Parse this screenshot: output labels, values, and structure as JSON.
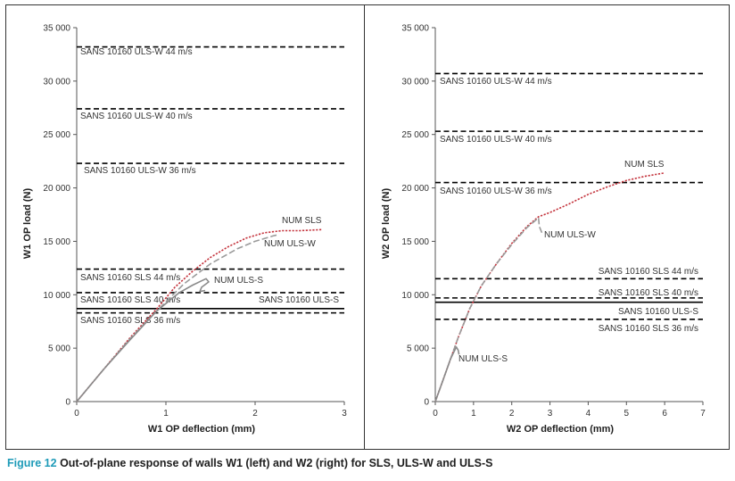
{
  "caption": {
    "label": "Figure 12",
    "text": "Out-of-plane response of walls W1 (left) and W2 (right) for SLS, ULS-W and ULS-S"
  },
  "colors": {
    "num_sls": "#c4343d",
    "num_uls_w": "#9a9a9a",
    "num_uls_s": "#8a8a8a",
    "limit": "#000000",
    "accent": "#1f9bb8"
  },
  "chart_data": [
    {
      "type": "line",
      "xlabel": "W1 OP deflection (mm)",
      "ylabel": "W1 OP load (N)",
      "xlim": [
        0,
        3
      ],
      "ylim": [
        0,
        35000
      ],
      "xticks": [
        "0",
        "1",
        "2",
        "3"
      ],
      "yticks": [
        "0",
        "5 000",
        "10 000",
        "15 000",
        "20 000",
        "25 000",
        "30 000",
        "35 000"
      ],
      "grid": false,
      "series": [
        {
          "name": "NUM SLS",
          "style": "dotted",
          "x": [
            0,
            0.3,
            0.6,
            0.9,
            1.1,
            1.3,
            1.5,
            1.7,
            1.9,
            2.1,
            2.3,
            2.5,
            2.75
          ],
          "y": [
            0,
            3000,
            6000,
            8700,
            10700,
            12200,
            13500,
            14500,
            15300,
            15800,
            16000,
            16000,
            16100
          ]
        },
        {
          "name": "NUM ULS-W",
          "style": "dashed",
          "x": [
            0,
            0.3,
            0.6,
            0.9,
            1.2,
            1.5,
            1.8,
            2.0,
            2.2,
            2.25
          ],
          "y": [
            0,
            3000,
            5900,
            8500,
            11000,
            12900,
            14300,
            15000,
            15500,
            15600
          ]
        },
        {
          "name": "NUM ULS-S",
          "style": "solid",
          "x": [
            0,
            0.3,
            0.6,
            0.9,
            1.15,
            1.3,
            1.4,
            1.45,
            1.48,
            1.4,
            1.38,
            1.44
          ],
          "y": [
            0,
            3000,
            5800,
            8500,
            10200,
            10900,
            11300,
            11500,
            11200,
            10700,
            10300,
            10400
          ]
        }
      ],
      "limits": [
        {
          "label": "SANS 10160 ULS-W 44 m/s",
          "value": 33200,
          "style": "dashed"
        },
        {
          "label": "SANS 10160 ULS-W 40 m/s",
          "value": 27400,
          "style": "dashed"
        },
        {
          "label": "SANS 10160 ULS-W 36 m/s",
          "value": 22300,
          "style": "dashed"
        },
        {
          "label": "SANS 10160 SLS 44 m/s",
          "value": 12400,
          "style": "dashed"
        },
        {
          "label": "SANS 10160 SLS 40 m/s",
          "value": 10200,
          "style": "dashed"
        },
        {
          "label": "SANS 10160 ULS-S",
          "value": 8700,
          "style": "solid"
        },
        {
          "label": "SANS 10160 SLS 36 m/s",
          "value": 8300,
          "style": "dashed"
        }
      ]
    },
    {
      "type": "line",
      "xlabel": "W2 OP deflection (mm)",
      "ylabel": "W2 OP load (N)",
      "xlim": [
        0,
        7
      ],
      "ylim": [
        0,
        35000
      ],
      "xticks": [
        "0",
        "1",
        "2",
        "3",
        "4",
        "5",
        "6",
        "7"
      ],
      "yticks": [
        "0",
        "5 000",
        "10 000",
        "15 000",
        "20 000",
        "25 000",
        "30 000",
        "35 000"
      ],
      "grid": false,
      "series": [
        {
          "name": "NUM SLS",
          "style": "dotted",
          "x": [
            0,
            0.3,
            0.6,
            0.9,
            1.2,
            1.6,
            2.0,
            2.4,
            2.7,
            3.0,
            3.5,
            4.0,
            4.5,
            5.0,
            5.5,
            6.0
          ],
          "y": [
            0,
            3000,
            6000,
            8700,
            10800,
            12900,
            14800,
            16400,
            17300,
            17700,
            18500,
            19400,
            20100,
            20700,
            21100,
            21400
          ]
        },
        {
          "name": "NUM ULS-W",
          "style": "dashed",
          "x": [
            0,
            0.3,
            0.6,
            0.9,
            1.2,
            1.6,
            2.0,
            2.4,
            2.7,
            2.72,
            2.8
          ],
          "y": [
            0,
            3000,
            6000,
            8700,
            10800,
            12900,
            14700,
            16300,
            17200,
            16400,
            15700
          ]
        },
        {
          "name": "NUM ULS-S",
          "style": "solid",
          "x": [
            0,
            0.2,
            0.4,
            0.55,
            0.6,
            0.62
          ],
          "y": [
            0,
            2000,
            4000,
            5100,
            4800,
            4400
          ]
        }
      ],
      "limits": [
        {
          "label": "SANS 10160 ULS-W 44 m/s",
          "value": 30700,
          "style": "dashed"
        },
        {
          "label": "SANS 10160 ULS-W 40 m/s",
          "value": 25300,
          "style": "dashed"
        },
        {
          "label": "SANS 10160 ULS-W 36 m/s",
          "value": 20500,
          "style": "dashed"
        },
        {
          "label": "SANS 10160 SLS 44 m/s",
          "value": 11500,
          "style": "dashed"
        },
        {
          "label": "SANS 10160 SLS 40 m/s",
          "value": 9700,
          "style": "dashed"
        },
        {
          "label": "SANS 10160 ULS-S",
          "value": 9300,
          "style": "solid"
        },
        {
          "label": "SANS 10160 SLS 36 m/s",
          "value": 7700,
          "style": "dashed"
        }
      ]
    }
  ]
}
